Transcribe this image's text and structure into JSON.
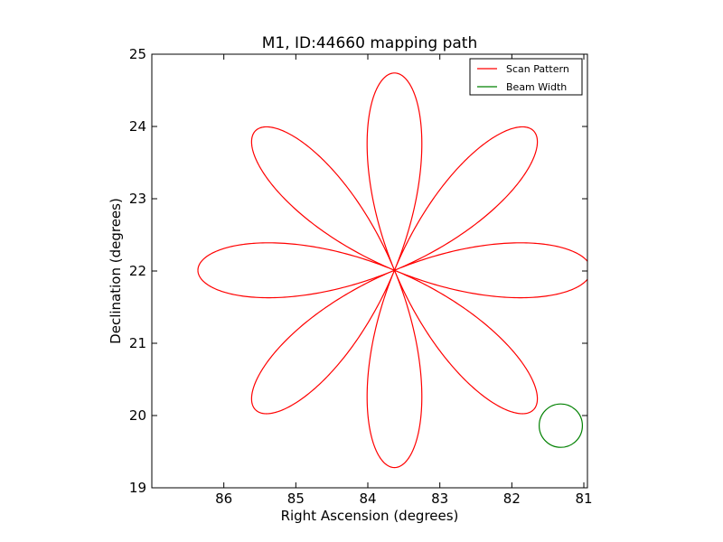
{
  "chart_data": {
    "type": "line",
    "title": "M1, ID:44660 mapping path",
    "xlabel": "Right Ascension (degrees)",
    "ylabel": "Declination (degrees)",
    "xlim": [
      87.0,
      80.95
    ],
    "ylim": [
      19,
      25
    ],
    "x_axis_inverted": true,
    "xticks": [
      86,
      85,
      84,
      83,
      82,
      81
    ],
    "yticks": [
      19,
      20,
      21,
      22,
      23,
      24,
      25
    ],
    "grid": false,
    "legend_position": "top-right",
    "series": [
      {
        "name": "Scan Pattern",
        "color": "#ff0000",
        "shape": "rose curve, 8 petals",
        "center": [
          83.63,
          22.01
        ],
        "petal_radius_deg": 2.73,
        "petal_count": 8
      },
      {
        "name": "Beam Width",
        "color": "#008000",
        "shape": "circle",
        "center": [
          81.32,
          19.86
        ],
        "radius_deg": 0.3
      }
    ]
  }
}
